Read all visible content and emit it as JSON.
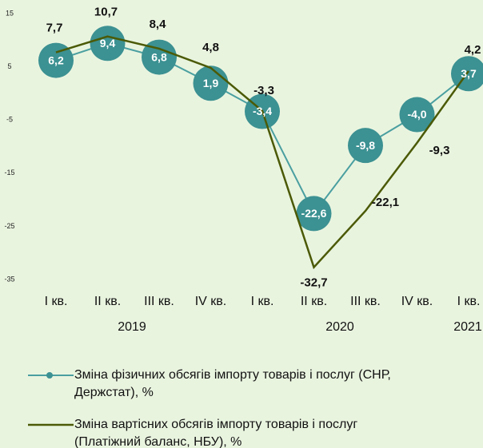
{
  "chart_data": {
    "type": "line",
    "categories": [
      "I кв.",
      "II кв.",
      "III кв.",
      "IV кв.",
      "I кв.",
      "II кв.",
      "III кв.",
      "IV кв.",
      "I кв."
    ],
    "year_labels": [
      "2019",
      "2020",
      "2021"
    ],
    "series": [
      {
        "name": "Зміна фізичних обсягів імпорту товарів і послуг (СНР, Держстат), %",
        "color": "#4a9fa0",
        "marker_color": "#3c9192",
        "values": [
          6.2,
          9.4,
          6.8,
          1.9,
          -3.4,
          -22.6,
          -9.8,
          -4.0,
          3.7
        ],
        "value_labels": [
          "6,2",
          "9,4",
          "6,8",
          "1,9",
          "-3,4",
          "-22,6",
          "-9,8",
          "-4,0",
          "3,7"
        ]
      },
      {
        "name": "Зміна вартісних обсягів імпорту товарів і послуг (Платіжний баланс, НБУ), %",
        "color": "#4b5a06",
        "values": [
          7.7,
          10.7,
          8.4,
          4.8,
          -3.3,
          -32.7,
          -22.1,
          -9.3,
          4.2
        ],
        "value_labels": [
          "7,7",
          "10,7",
          "8,4",
          "4,8",
          "-3,3",
          "-32,7",
          "-22,1",
          "-9,3",
          "4,2"
        ]
      }
    ],
    "ylim": [
      -35,
      15
    ],
    "yticks": [
      15,
      5,
      -5,
      -15,
      -25,
      -35
    ],
    "grid": false
  }
}
